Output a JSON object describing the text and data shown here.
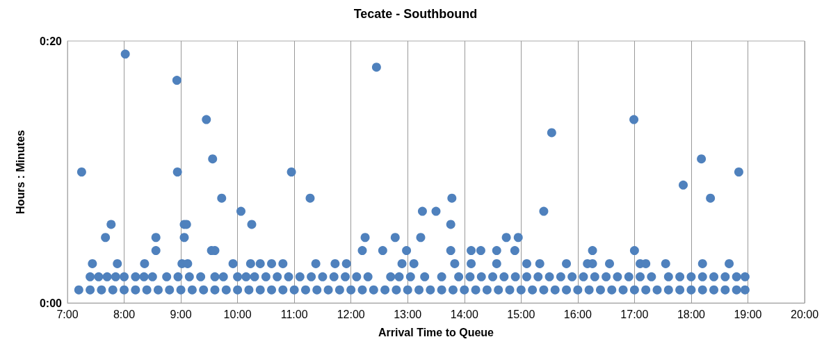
{
  "chart_data": {
    "type": "scatter",
    "title": "Tecate - Southbound",
    "xlabel": "Arrival Time to Queue",
    "ylabel": "Hours : Minutes",
    "xlim": [
      7,
      20
    ],
    "xticks": [
      {
        "value": 7,
        "label": "7:00"
      },
      {
        "value": 8,
        "label": "8:00"
      },
      {
        "value": 9,
        "label": "9:00"
      },
      {
        "value": 10,
        "label": "10:00"
      },
      {
        "value": 11,
        "label": "11:00"
      },
      {
        "value": 12,
        "label": "12:00"
      },
      {
        "value": 13,
        "label": "13:00"
      },
      {
        "value": 14,
        "label": "14:00"
      },
      {
        "value": 15,
        "label": "15:00"
      },
      {
        "value": 16,
        "label": "16:00"
      },
      {
        "value": 17,
        "label": "17:00"
      },
      {
        "value": 18,
        "label": "18:00"
      },
      {
        "value": 19,
        "label": "19:00"
      },
      {
        "value": 20,
        "label": "20:00"
      }
    ],
    "ylim": [
      0,
      20
    ],
    "yticks": [
      {
        "value": 0,
        "label": "0:00"
      },
      {
        "value": 20,
        "label": "0:20"
      }
    ],
    "grid": "x",
    "marker": "circle",
    "series": [
      {
        "color": "#4f81bd",
        "x": [
          7.25,
          8.02,
          8.93,
          8.94,
          9.45,
          9.56,
          9.72,
          10.06,
          10.25,
          10.95,
          11.28,
          12.45,
          13.26,
          13.5,
          13.78,
          13.76,
          15.4,
          15.54,
          16.99,
          17.86,
          18.18,
          18.34,
          18.84,
          7.77,
          7.67,
          8.56,
          8.56,
          9.06,
          9.1,
          9.06,
          9.54,
          9.6,
          12.25,
          12.2,
          12.56,
          12.78,
          12.98,
          13.23,
          13.76,
          14.12,
          14.29,
          14.57,
          14.74,
          14.89,
          14.95,
          16.26,
          17.0,
          7.44,
          7.88,
          8.36,
          9.02,
          9.12,
          9.92,
          10.23,
          10.4,
          10.6,
          10.8,
          11.38,
          11.72,
          11.92,
          12.9,
          13.11,
          13.83,
          14.12,
          14.57,
          15.1,
          15.33,
          15.8,
          16.17,
          16.26,
          16.56,
          17.1,
          17.2,
          17.55,
          18.2,
          18.67,
          7.4,
          7.55,
          7.7,
          7.85,
          8.0,
          8.2,
          8.35,
          8.5,
          8.75,
          8.95,
          9.15,
          9.35,
          9.6,
          9.75,
          10.0,
          10.15,
          10.3,
          10.5,
          10.7,
          10.9,
          11.1,
          11.3,
          11.5,
          11.7,
          11.9,
          12.1,
          12.3,
          12.7,
          12.85,
          13.05,
          13.3,
          13.6,
          13.9,
          14.1,
          14.3,
          14.5,
          14.7,
          14.9,
          15.1,
          15.3,
          15.5,
          15.7,
          15.9,
          16.1,
          16.3,
          16.5,
          16.7,
          16.9,
          17.1,
          17.3,
          17.6,
          17.8,
          18.0,
          18.2,
          18.4,
          18.6,
          18.8,
          18.95,
          7.2,
          7.4,
          7.6,
          7.8,
          8.0,
          8.2,
          8.4,
          8.6,
          8.8,
          9.0,
          9.2,
          9.4,
          9.6,
          9.8,
          10.0,
          10.2,
          10.4,
          10.6,
          10.8,
          11.0,
          11.2,
          11.4,
          11.6,
          11.8,
          12.0,
          12.2,
          12.4,
          12.6,
          12.8,
          13.0,
          13.2,
          13.4,
          13.6,
          13.8,
          14.0,
          14.2,
          14.4,
          14.6,
          14.8,
          15.0,
          15.2,
          15.4,
          15.6,
          15.8,
          16.0,
          16.2,
          16.4,
          16.6,
          16.8,
          17.0,
          17.2,
          17.4,
          17.6,
          17.8,
          18.0,
          18.2,
          18.4,
          18.6,
          18.8,
          18.95
        ],
        "values": [
          10,
          19,
          17,
          10,
          14,
          11,
          8,
          7,
          6,
          10,
          8,
          18,
          7,
          7,
          8,
          6,
          7,
          13,
          14,
          9,
          11,
          8,
          10,
          6,
          5,
          5,
          4,
          6,
          6,
          5,
          4,
          4,
          5,
          4,
          4,
          5,
          4,
          5,
          4,
          4,
          4,
          4,
          5,
          4,
          5,
          4,
          4,
          3,
          3,
          3,
          3,
          3,
          3,
          3,
          3,
          3,
          3,
          3,
          3,
          3,
          3,
          3,
          3,
          3,
          3,
          3,
          3,
          3,
          3,
          3,
          3,
          3,
          3,
          3,
          3,
          3,
          2,
          2,
          2,
          2,
          2,
          2,
          2,
          2,
          2,
          2,
          2,
          2,
          2,
          2,
          2,
          2,
          2,
          2,
          2,
          2,
          2,
          2,
          2,
          2,
          2,
          2,
          2,
          2,
          2,
          2,
          2,
          2,
          2,
          2,
          2,
          2,
          2,
          2,
          2,
          2,
          2,
          2,
          2,
          2,
          2,
          2,
          2,
          2,
          2,
          2,
          2,
          2,
          2,
          2,
          2,
          2,
          2,
          2,
          1,
          1,
          1,
          1,
          1,
          1,
          1,
          1,
          1,
          1,
          1,
          1,
          1,
          1,
          1,
          1,
          1,
          1,
          1,
          1,
          1,
          1,
          1,
          1,
          1,
          1,
          1,
          1,
          1,
          1,
          1,
          1,
          1,
          1,
          1,
          1,
          1,
          1,
          1,
          1,
          1,
          1,
          1,
          1,
          1,
          1,
          1,
          1,
          1,
          1,
          1,
          1,
          1,
          1,
          1,
          1,
          1,
          1,
          1,
          1
        ]
      }
    ]
  }
}
